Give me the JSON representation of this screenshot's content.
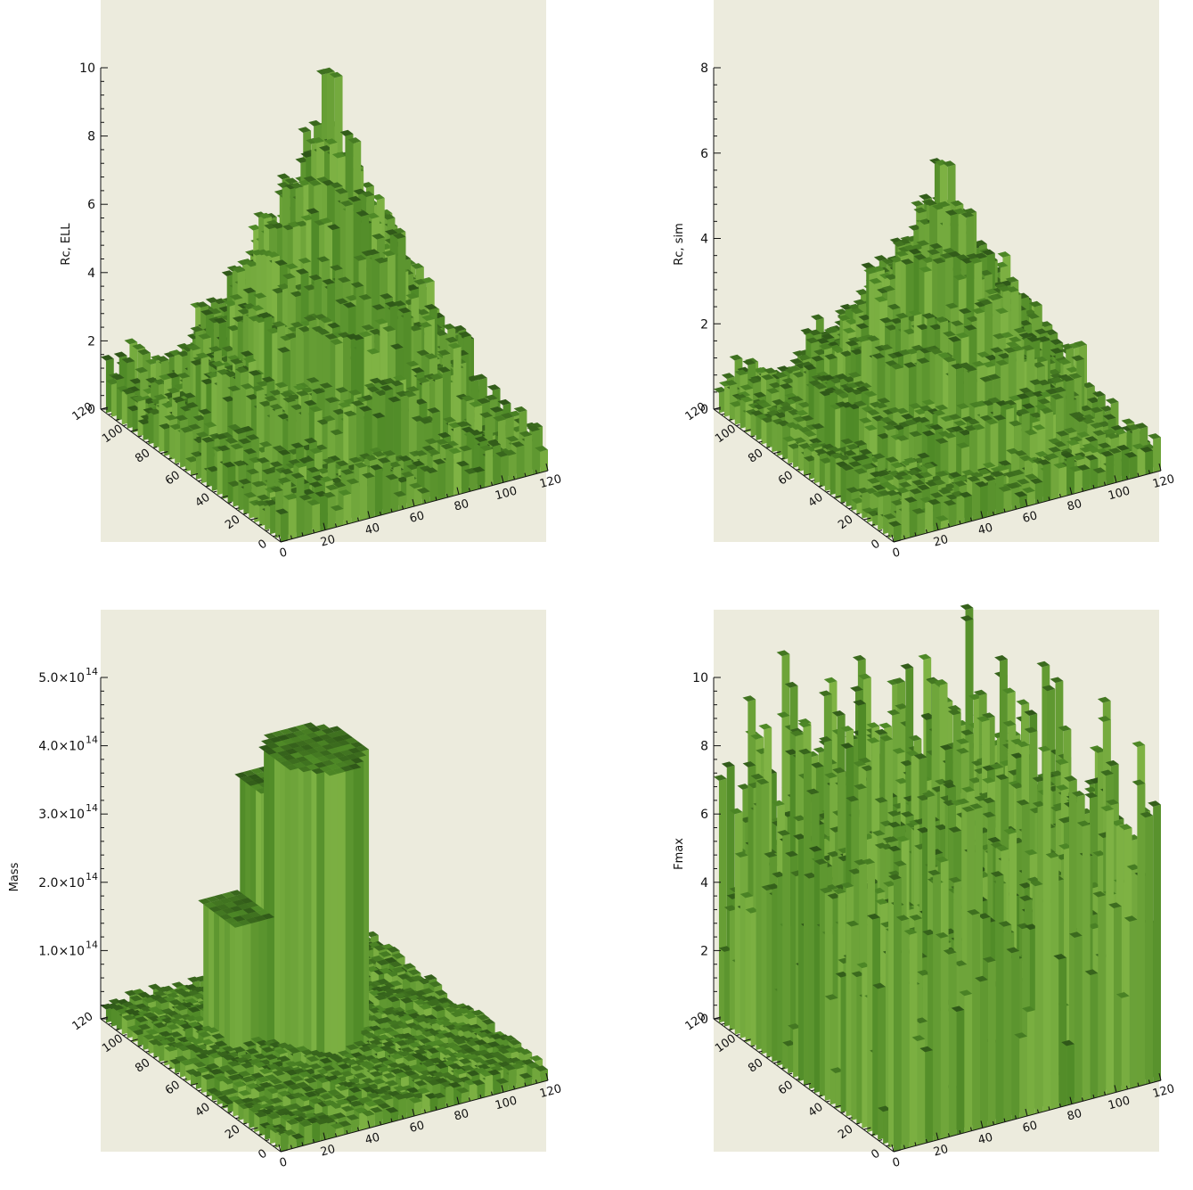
{
  "chart_data": [
    {
      "type": "surface",
      "zlabel": "Rc, ELL",
      "z_ticks": [
        "0",
        "2",
        "4",
        "6",
        "8",
        "10"
      ],
      "z_range": [
        0,
        10
      ],
      "x_ticks": [
        "0",
        "20",
        "40",
        "60",
        "80",
        "100",
        "120"
      ],
      "y_ticks": [
        "0",
        "20",
        "40",
        "60",
        "80",
        "100",
        "120"
      ],
      "x_range": [
        0,
        120
      ],
      "y_range": [
        0,
        120
      ],
      "shape": "peaked",
      "peak_value": 8.9
    },
    {
      "type": "surface",
      "zlabel": "Rc, sim",
      "z_ticks": [
        "0",
        "2",
        "4",
        "6",
        "8"
      ],
      "z_range": [
        0,
        8
      ],
      "x_ticks": [
        "0",
        "20",
        "40",
        "60",
        "80",
        "100",
        "120"
      ],
      "y_ticks": [
        "0",
        "20",
        "40",
        "60",
        "80",
        "100",
        "120"
      ],
      "x_range": [
        0,
        120
      ],
      "y_range": [
        0,
        120
      ],
      "shape": "peaked",
      "peak_value": 5.4
    },
    {
      "type": "surface",
      "zlabel": "Mass",
      "z_ticks": [
        {
          "mantissa": "",
          "exp": ""
        },
        {
          "mantissa": "1.0×10",
          "exp": "14"
        },
        {
          "mantissa": "2.0×10",
          "exp": "14"
        },
        {
          "mantissa": "3.0×10",
          "exp": "14"
        },
        {
          "mantissa": "4.0×10",
          "exp": "14"
        },
        {
          "mantissa": "5.0×10",
          "exp": "14"
        }
      ],
      "z_range": [
        0,
        500000000000000.0
      ],
      "x_ticks": [
        "0",
        "20",
        "40",
        "60",
        "80",
        "100",
        "120"
      ],
      "y_ticks": [
        "0",
        "20",
        "40",
        "60",
        "80",
        "100",
        "120"
      ],
      "x_range": [
        0,
        120
      ],
      "y_range": [
        0,
        120
      ],
      "shape": "plateau",
      "peak_value": 430000000000000.0
    },
    {
      "type": "surface",
      "zlabel": "Fmax",
      "z_ticks": [
        "0",
        "2",
        "4",
        "6",
        "8",
        "10"
      ],
      "z_range": [
        0,
        10
      ],
      "x_ticks": [
        "0",
        "20",
        "40",
        "60",
        "80",
        "100",
        "120"
      ],
      "y_ticks": [
        "0",
        "20",
        "40",
        "60",
        "80",
        "100",
        "120"
      ],
      "x_range": [
        0,
        120
      ],
      "y_range": [
        0,
        120
      ],
      "shape": "noisy",
      "peak_value": 9.4
    }
  ],
  "colors": {
    "background": "#ecebdd",
    "surface_dark": "#2e5618",
    "surface_mid": "#4f8a27",
    "surface_light": "#8cbe4c",
    "axis": "#111111"
  }
}
